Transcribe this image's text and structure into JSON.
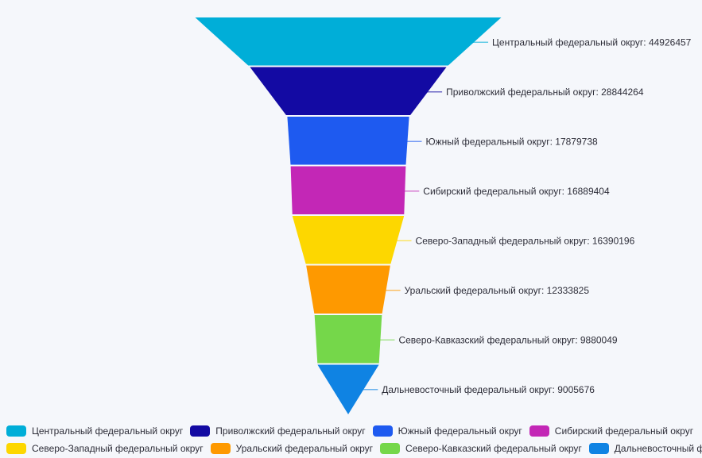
{
  "chart_data": {
    "type": "funnel",
    "title": "",
    "label_format": "{name}: {value}",
    "legend_position": "bottom",
    "legend_rows": 2,
    "background": "#f5f7fb",
    "text_color": "#2d2d38",
    "items": [
      {
        "label": "Центральный федеральный округ",
        "value": 44926457,
        "color": "#00aed8"
      },
      {
        "label": "Приволжский федеральный округ",
        "value": 28844264,
        "color": "#130aa3"
      },
      {
        "label": "Южный федеральный округ",
        "value": 17879738,
        "color": "#1e5af0"
      },
      {
        "label": "Сибирский федеральный округ",
        "value": 16889404,
        "color": "#c327b6"
      },
      {
        "label": "Северо-Западный федеральный округ",
        "value": 16390196,
        "color": "#fdd700"
      },
      {
        "label": "Уральский федеральный округ",
        "value": 12333825,
        "color": "#fe9900"
      },
      {
        "label": "Северо-Кавказский федеральный округ",
        "value": 9880049,
        "color": "#75d74a"
      },
      {
        "label": "Дальневосточный федеральный округ",
        "value": 9005676,
        "color": "#0f83e3"
      }
    ]
  }
}
